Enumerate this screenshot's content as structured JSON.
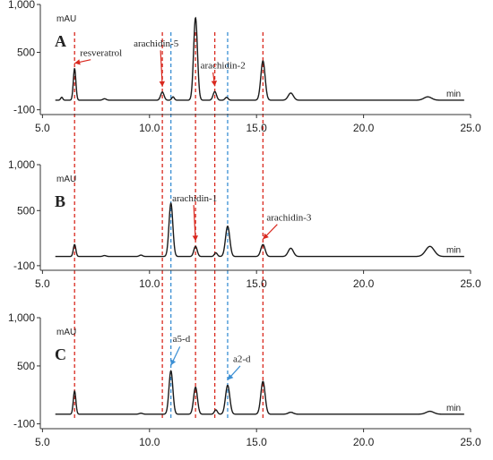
{
  "chart_data": [
    {
      "type": "line",
      "panel_letter": "A",
      "ylabel": "mAU",
      "xlabel": "min",
      "xlim": [
        4.9,
        25.0
      ],
      "ylim": [
        -150,
        1000
      ],
      "xticks": [
        "5.0",
        "10.0",
        "15.0",
        "20.0",
        "25.0"
      ],
      "yticks": [
        "1,000",
        "500",
        "-100"
      ],
      "peaks": [
        {
          "x": 5.9,
          "y": 30,
          "w": 0.05
        },
        {
          "x": 6.5,
          "y": 330,
          "w": 0.06
        },
        {
          "x": 7.9,
          "y": 15,
          "w": 0.08
        },
        {
          "x": 10.6,
          "y": 85,
          "w": 0.08
        },
        {
          "x": 11.1,
          "y": 35,
          "w": 0.06
        },
        {
          "x": 12.15,
          "y": 860,
          "w": 0.09
        },
        {
          "x": 13.05,
          "y": 90,
          "w": 0.08
        },
        {
          "x": 13.6,
          "y": 30,
          "w": 0.07
        },
        {
          "x": 15.3,
          "y": 410,
          "w": 0.1
        },
        {
          "x": 16.6,
          "y": 75,
          "w": 0.12
        },
        {
          "x": 23.0,
          "y": 35,
          "w": 0.18
        }
      ],
      "annotations": [
        {
          "text": "resveratrol",
          "x": 6.5,
          "y": 330,
          "arrow_color": "#d9281e"
        },
        {
          "text": "arachidin-5",
          "x": 10.6,
          "y": 85,
          "arrow_color": "#d9281e"
        },
        {
          "text": "arachidin-2",
          "x": 13.05,
          "y": 90,
          "arrow_color": "#d9281e"
        }
      ]
    },
    {
      "type": "line",
      "panel_letter": "B",
      "ylabel": "mAU",
      "xlabel": "min",
      "xlim": [
        4.9,
        25.0
      ],
      "ylim": [
        -150,
        1000
      ],
      "xticks": [
        "5.0",
        "10.0",
        "15.0",
        "20.0",
        "25.0"
      ],
      "yticks": [
        "1,000",
        "500",
        "-100"
      ],
      "peaks": [
        {
          "x": 6.5,
          "y": 130,
          "w": 0.06
        },
        {
          "x": 7.9,
          "y": 10,
          "w": 0.08
        },
        {
          "x": 9.6,
          "y": 15,
          "w": 0.08
        },
        {
          "x": 11.0,
          "y": 580,
          "w": 0.09
        },
        {
          "x": 12.15,
          "y": 110,
          "w": 0.08
        },
        {
          "x": 13.1,
          "y": 40,
          "w": 0.07
        },
        {
          "x": 13.65,
          "y": 330,
          "w": 0.1
        },
        {
          "x": 15.3,
          "y": 130,
          "w": 0.1
        },
        {
          "x": 16.6,
          "y": 90,
          "w": 0.12
        },
        {
          "x": 23.1,
          "y": 110,
          "w": 0.2
        }
      ],
      "annotations": [
        {
          "text": "arachidin-1",
          "x": 12.15,
          "y": 110,
          "arrow_color": "#d9281e"
        },
        {
          "text": "arachidin-3",
          "x": 15.3,
          "y": 130,
          "arrow_color": "#d9281e"
        }
      ]
    },
    {
      "type": "line",
      "panel_letter": "C",
      "ylabel": "mAU",
      "xlabel": "min",
      "xlim": [
        4.9,
        25.0
      ],
      "ylim": [
        -150,
        1000
      ],
      "xticks": [
        "5.0",
        "10.0",
        "15.0",
        "20.0",
        "25.0"
      ],
      "yticks": [
        "1,000",
        "500",
        "-100"
      ],
      "peaks": [
        {
          "x": 6.5,
          "y": 240,
          "w": 0.06
        },
        {
          "x": 9.6,
          "y": 10,
          "w": 0.08
        },
        {
          "x": 11.0,
          "y": 450,
          "w": 0.09
        },
        {
          "x": 12.15,
          "y": 280,
          "w": 0.09
        },
        {
          "x": 13.1,
          "y": 45,
          "w": 0.07
        },
        {
          "x": 13.65,
          "y": 300,
          "w": 0.1
        },
        {
          "x": 15.3,
          "y": 340,
          "w": 0.1
        },
        {
          "x": 16.6,
          "y": 20,
          "w": 0.12
        },
        {
          "x": 23.1,
          "y": 30,
          "w": 0.18
        }
      ],
      "annotations": [
        {
          "text": "a5-d",
          "x": 11.0,
          "y": 450,
          "arrow_color": "#3b8fd4"
        },
        {
          "text": "a2-d",
          "x": 13.65,
          "y": 300,
          "arrow_color": "#3b8fd4"
        }
      ]
    }
  ],
  "reference_lines": [
    {
      "x": 6.5,
      "color": "#d9281e"
    },
    {
      "x": 10.6,
      "color": "#d9281e"
    },
    {
      "x": 12.15,
      "color": "#d9281e"
    },
    {
      "x": 13.05,
      "color": "#d9281e"
    },
    {
      "x": 15.3,
      "color": "#d9281e"
    },
    {
      "x": 11.0,
      "color": "#3b8fd4"
    },
    {
      "x": 13.65,
      "color": "#3b8fd4"
    }
  ],
  "colors": {
    "trace": "#1a1a1a",
    "axis": "#333333",
    "red_marker": "#d9281e",
    "blue_marker": "#3b8fd4"
  }
}
